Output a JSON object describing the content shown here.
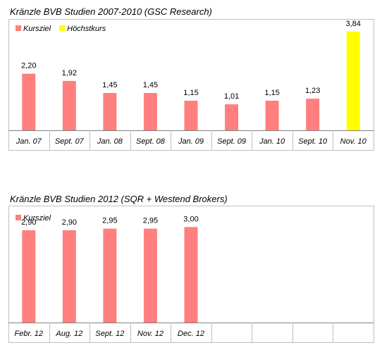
{
  "chart_data": [
    {
      "type": "bar",
      "title": "Kränzle BVB Studien 2007-2010 (GSC Research)",
      "categories": [
        "Jan. 07",
        "Sept. 07",
        "Jan. 08",
        "Sept. 08",
        "Jan. 09",
        "Sept. 09",
        "Jan. 10",
        "Sept. 10",
        "Nov. 10"
      ],
      "value_labels": [
        "2,20",
        "1,92",
        "1,45",
        "1,45",
        "1,15",
        "1,01",
        "1,15",
        "1,23",
        "3,84"
      ],
      "series": [
        {
          "name": "Kursziel",
          "color": "#ff7f7f",
          "values": [
            2.2,
            1.92,
            1.45,
            1.45,
            1.15,
            1.01,
            1.15,
            1.23,
            null
          ]
        },
        {
          "name": "Höchstkurs",
          "color": "#ffff00",
          "values": [
            null,
            null,
            null,
            null,
            null,
            null,
            null,
            null,
            3.84
          ]
        }
      ],
      "ylim": [
        0,
        4.3
      ],
      "legend": "top-left",
      "grid": false
    },
    {
      "type": "bar",
      "title": "Kränzle BVB Studien 2012 (SQR + Westend Brokers)",
      "categories": [
        "Febr. 12",
        "Aug. 12",
        "Sept. 12",
        "Nov. 12",
        "Dec. 12",
        "",
        "",
        "",
        ""
      ],
      "value_labels": [
        "2,90",
        "2,90",
        "2,95",
        "2,95",
        "3,00"
      ],
      "series": [
        {
          "name": "Kursziel",
          "color": "#ff7f7f",
          "values": [
            2.9,
            2.9,
            2.95,
            2.95,
            3.0,
            null,
            null,
            null,
            null
          ]
        }
      ],
      "ylim": [
        0,
        3.65
      ],
      "legend": "top-left",
      "grid": false
    }
  ]
}
